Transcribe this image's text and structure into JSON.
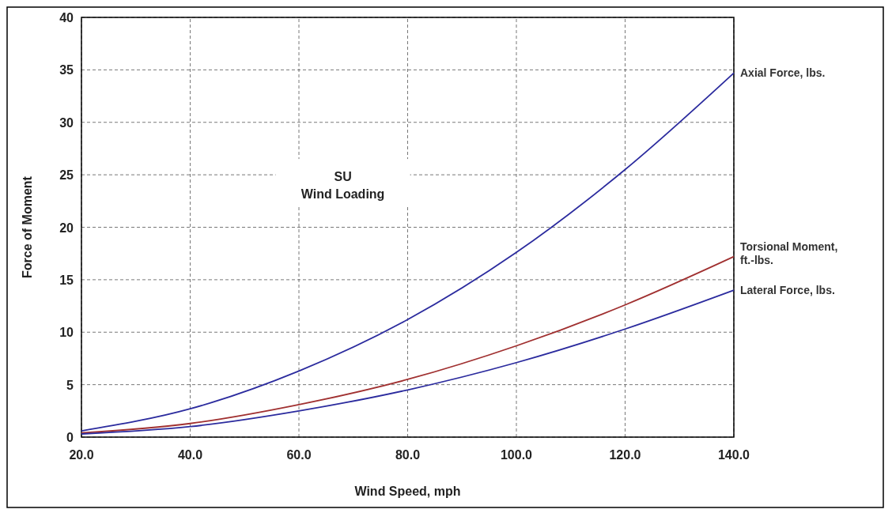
{
  "chart_data": {
    "type": "line",
    "xlabel": "Wind Speed, mph",
    "ylabel": "Force of Moment",
    "annotations": [
      "SU",
      "Wind Loading"
    ],
    "x": [
      20,
      40,
      60,
      80,
      100,
      120,
      140
    ],
    "xlim": [
      20,
      140
    ],
    "xticks": [
      {
        "value": 20,
        "label": "20.0"
      },
      {
        "value": 40,
        "label": "40.0"
      },
      {
        "value": 60,
        "label": "60.0"
      },
      {
        "value": 80,
        "label": "80.0"
      },
      {
        "value": 100,
        "label": "100.0"
      },
      {
        "value": 120,
        "label": "120.0"
      },
      {
        "value": 140,
        "label": "140.0"
      }
    ],
    "ylim": [
      0,
      40
    ],
    "yticks": [
      0,
      5,
      10,
      15,
      20,
      25,
      30,
      35,
      40
    ],
    "grid": true,
    "line_style": "solid",
    "marker": "none",
    "series": [
      {
        "name": "Axial Force, lbs.",
        "color": "#2b2b9e",
        "values": [
          0.6,
          2.7,
          6.3,
          11.2,
          17.6,
          25.5,
          34.7
        ]
      },
      {
        "name": "Torsional Moment, ft.-lbs.",
        "color": "#a03030",
        "values": [
          0.4,
          1.3,
          3.1,
          5.5,
          8.7,
          12.6,
          17.2
        ]
      },
      {
        "name": "Lateral Force, lbs.",
        "color": "#2b2b9e",
        "values": [
          0.3,
          1.0,
          2.5,
          4.5,
          7.1,
          10.3,
          14.0
        ]
      }
    ]
  }
}
